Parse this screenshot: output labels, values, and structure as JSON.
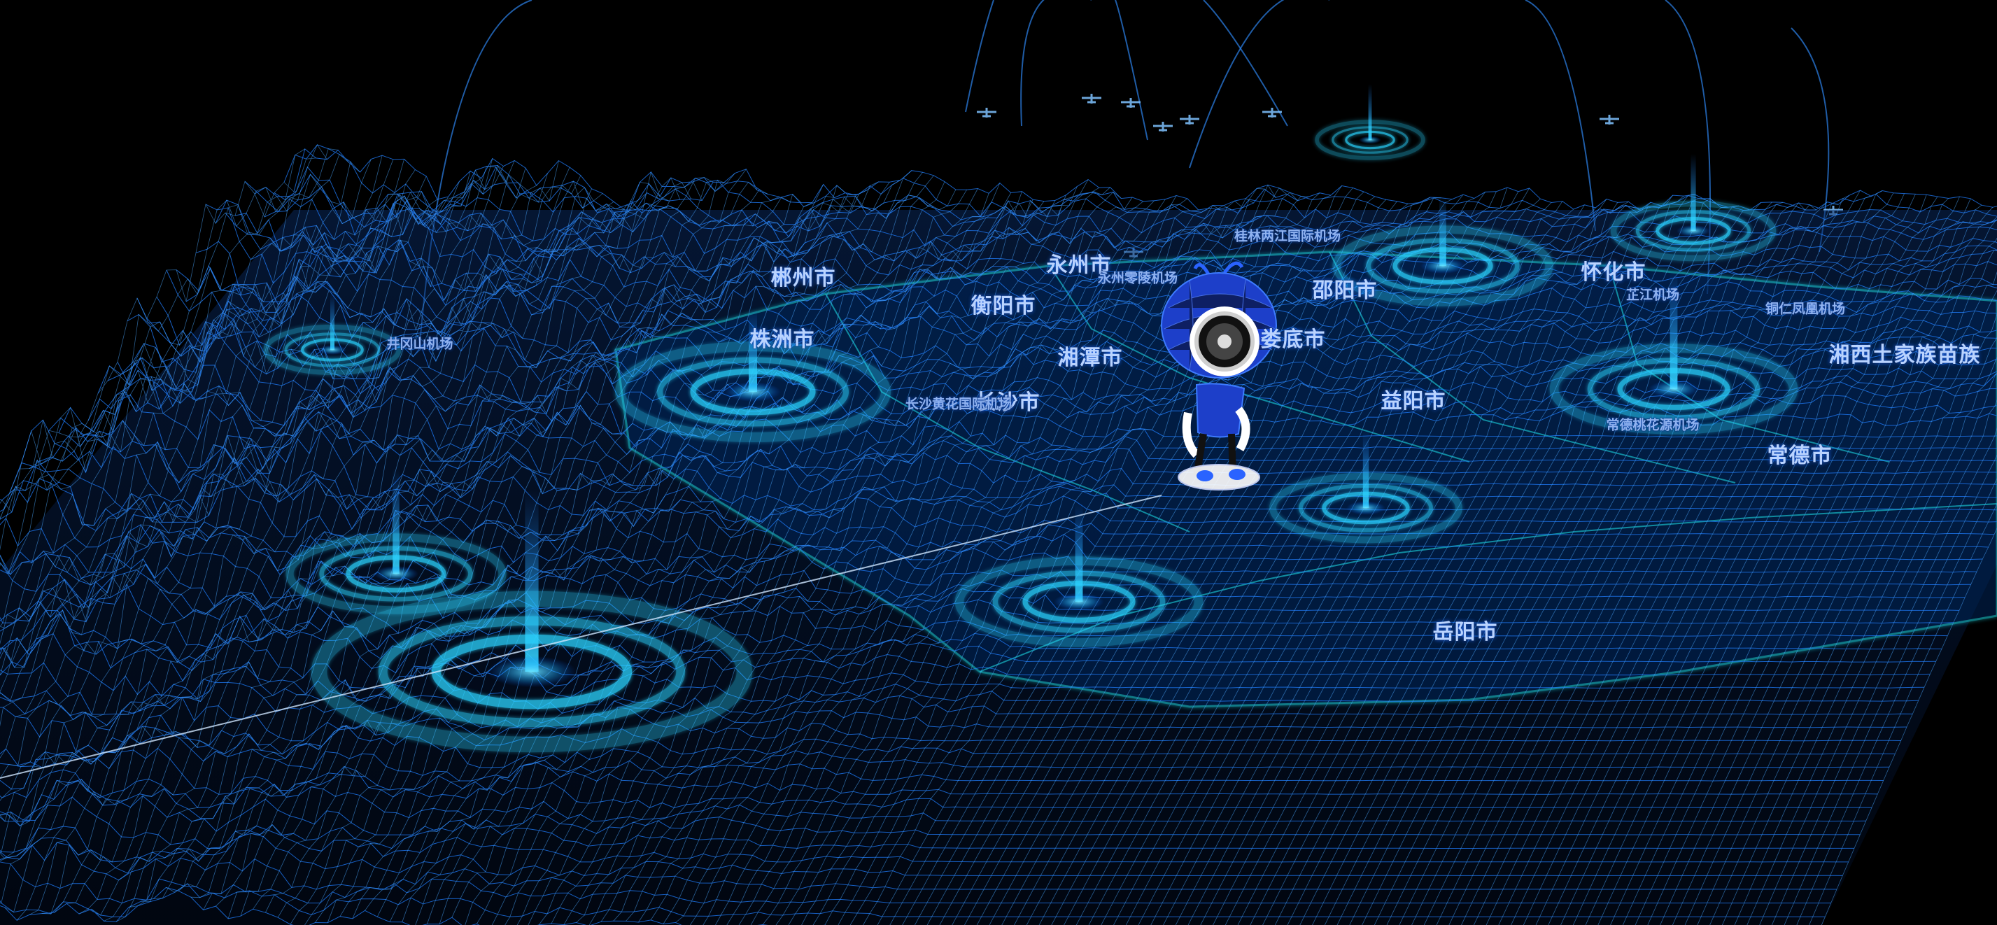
{
  "map": {
    "colors": {
      "background": "#000000",
      "terrain_wire": "#1f7dff",
      "terrain_wire_bright": "#4aa8ff",
      "region_fill": "#06285a",
      "region_edge": "#1ad5e0",
      "beacon": "#2bd4ff",
      "label": "#b9d3ff"
    },
    "cities": [
      {
        "key": "chenzhou",
        "name": "郴州市"
      },
      {
        "key": "yongzhou",
        "name": "永州市"
      },
      {
        "key": "hengyang",
        "name": "衡阳市"
      },
      {
        "key": "shaoyang",
        "name": "邵阳市"
      },
      {
        "key": "huaihua",
        "name": "怀化市"
      },
      {
        "key": "zhuzhou",
        "name": "株洲市"
      },
      {
        "key": "xiangtan",
        "name": "湘潭市"
      },
      {
        "key": "loudi",
        "name": "娄底市"
      },
      {
        "key": "changsha",
        "name": "长沙市"
      },
      {
        "key": "yiyang",
        "name": "益阳市"
      },
      {
        "key": "changde",
        "name": "常德市"
      },
      {
        "key": "yueyang",
        "name": "岳阳市"
      },
      {
        "key": "xiangxi",
        "name": "湘西土家族苗族"
      }
    ],
    "airports": [
      {
        "key": "jinggangshan",
        "name": "井冈山机场"
      },
      {
        "key": "guilin",
        "name": "桂林两江国际机场"
      },
      {
        "key": "yongzhou_ap",
        "name": "永州零陵机场"
      },
      {
        "key": "zhijiang",
        "name": "芷江机场"
      },
      {
        "key": "tongren",
        "name": "铜仁凤凰机场"
      },
      {
        "key": "changsha_ap",
        "name": "长沙黄花国际机场"
      },
      {
        "key": "changde_ap",
        "name": "常德桃花源机场"
      }
    ]
  }
}
